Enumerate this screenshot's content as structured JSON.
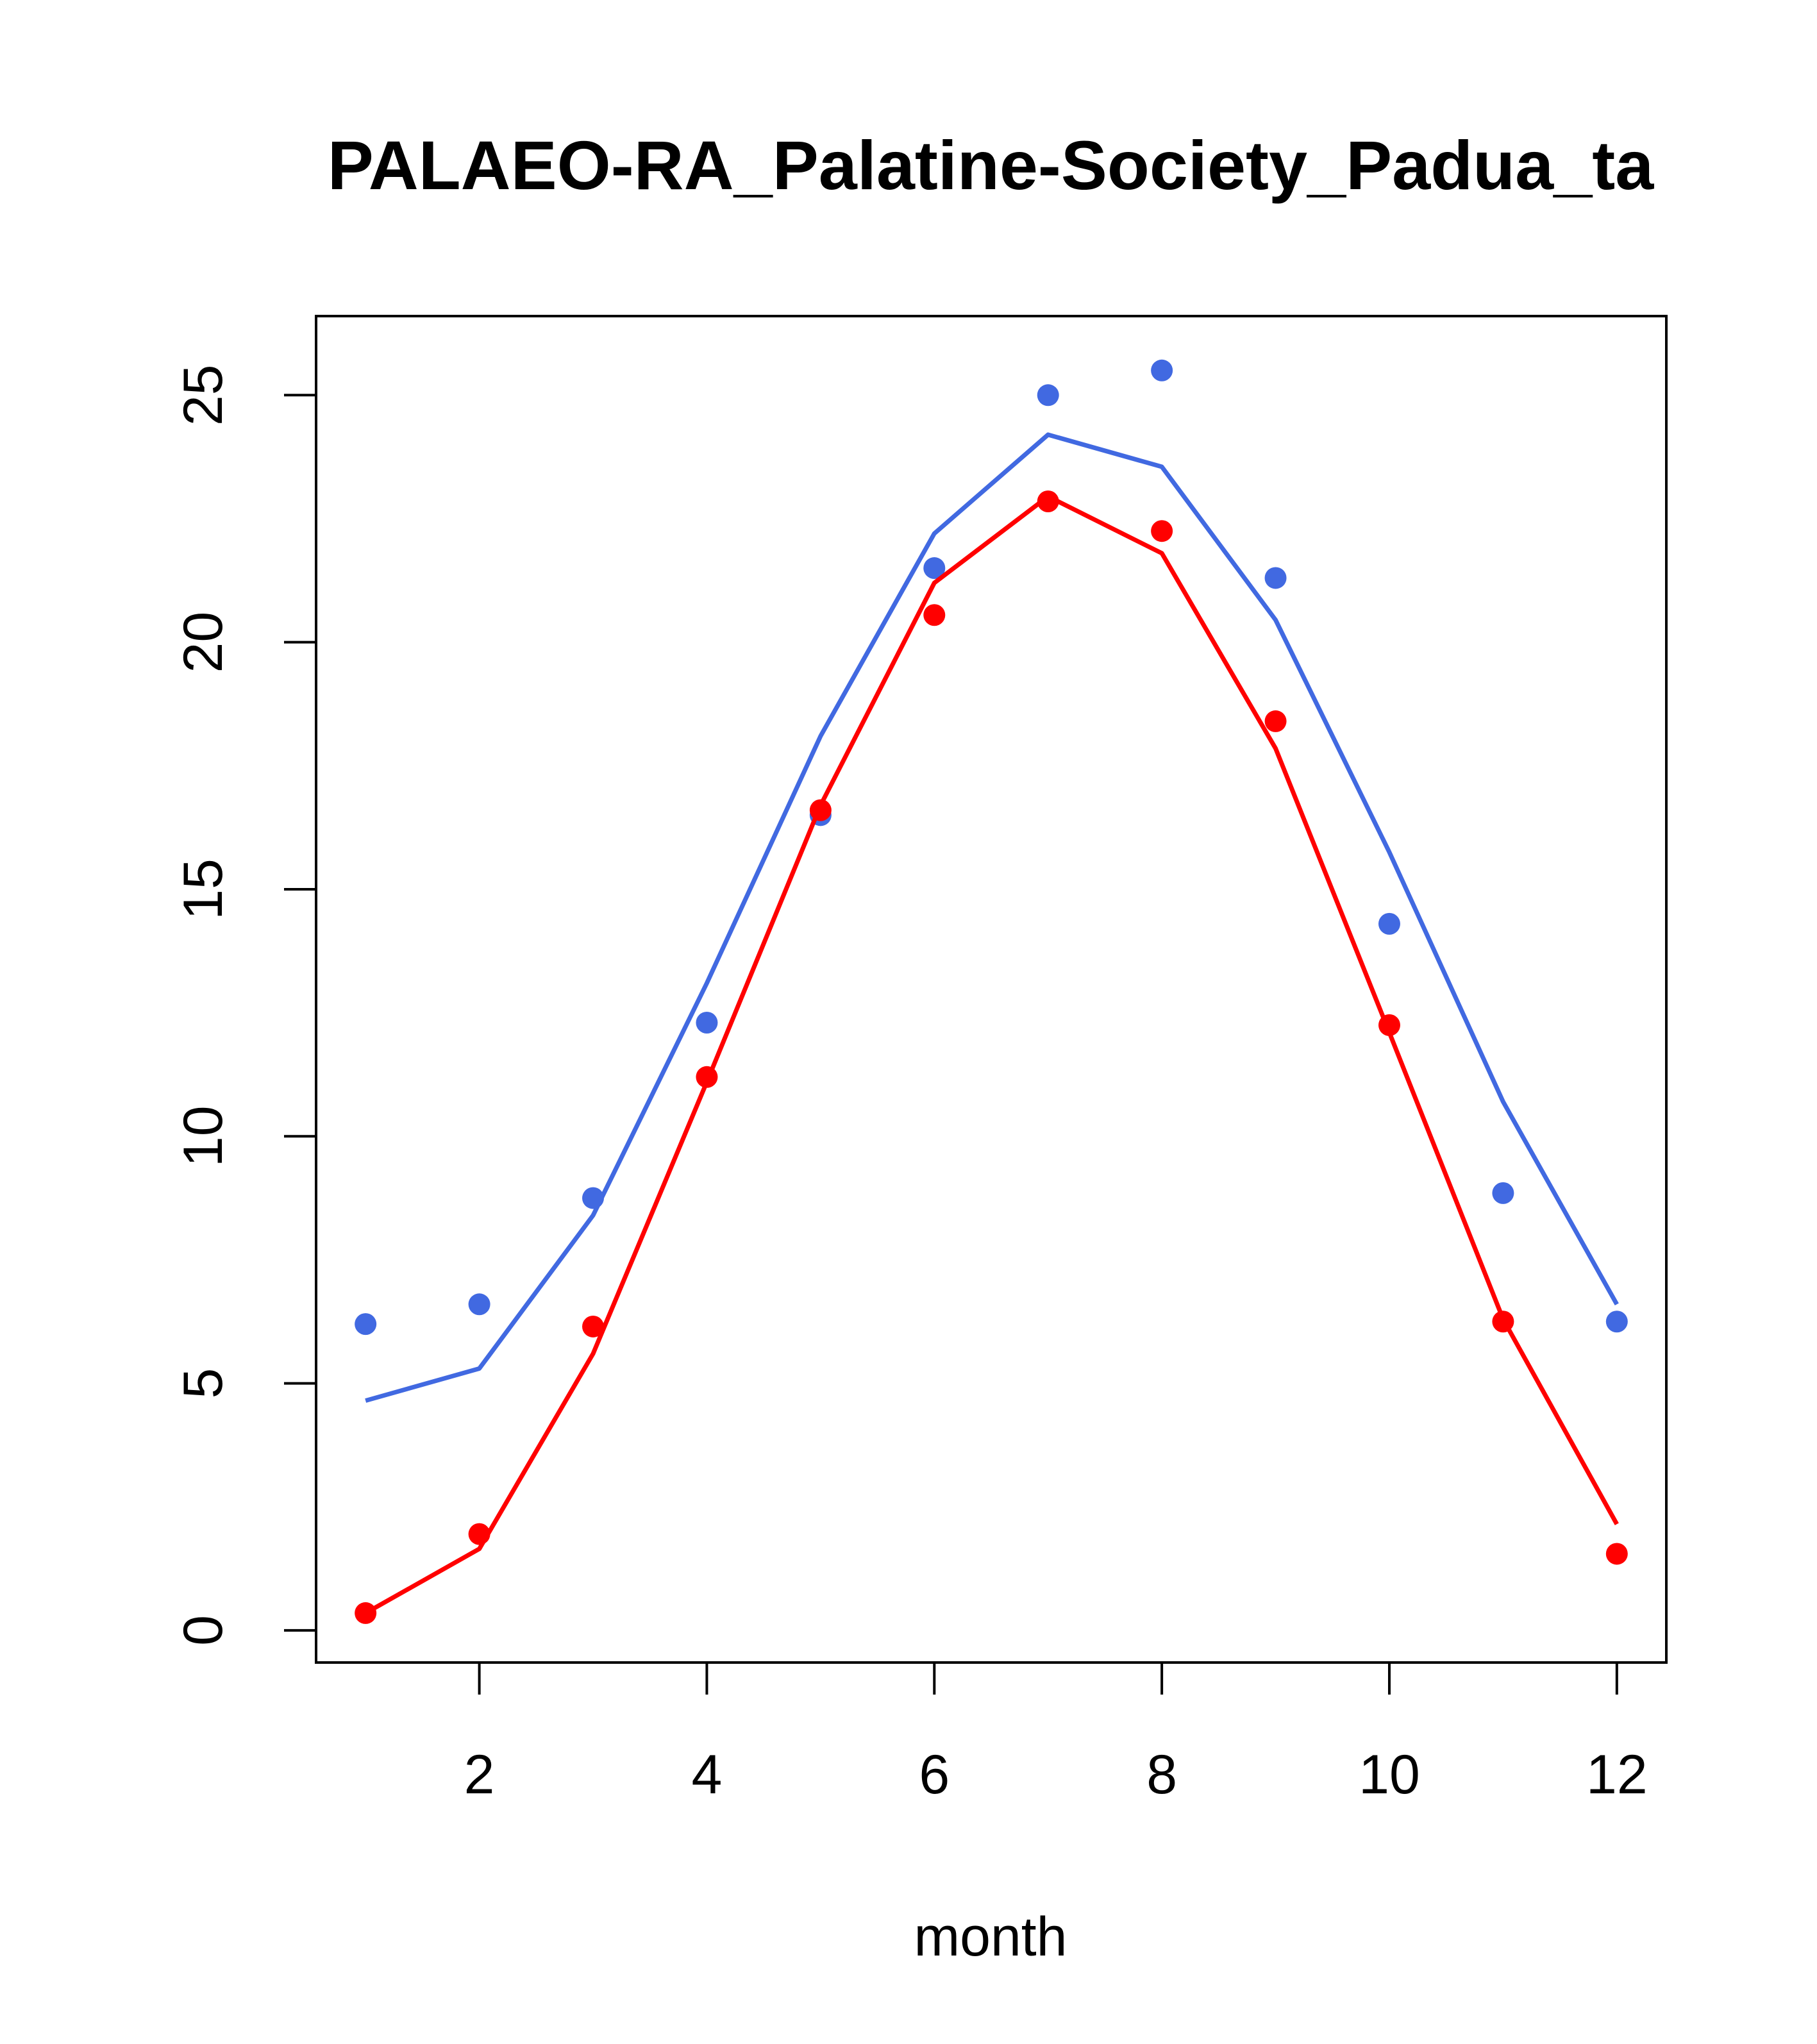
{
  "chart_data": {
    "type": "line",
    "title": "PALAEO-RA_Palatine-Society_Padua_ta",
    "xlabel": "month",
    "ylabel": "",
    "xlim": [
      0.565,
      12.435
    ],
    "ylim": [
      -0.65,
      26.6
    ],
    "xticks": [
      2,
      4,
      6,
      8,
      10,
      12
    ],
    "yticks": [
      0,
      5,
      10,
      15,
      20,
      25
    ],
    "grid": false,
    "legend": "none",
    "x": [
      1,
      2,
      3,
      4,
      5,
      6,
      7,
      8,
      9,
      10,
      11,
      12
    ],
    "series": [
      {
        "color": "#4169E1",
        "points": [
          6.2,
          6.6,
          8.75,
          12.3,
          16.5,
          21.5,
          25.0,
          25.5,
          21.3,
          14.3,
          8.85,
          6.25
        ],
        "line": [
          4.65,
          5.3,
          8.4,
          13.1,
          18.1,
          22.2,
          24.2,
          23.55,
          20.45,
          15.75,
          10.7,
          6.6
        ]
      },
      {
        "color": "#FF0000",
        "points": [
          0.35,
          1.95,
          6.15,
          11.2,
          16.6,
          20.55,
          22.85,
          22.25,
          18.4,
          12.25,
          6.25,
          1.55
        ],
        "line": [
          0.35,
          1.65,
          5.6,
          11.1,
          16.7,
          21.2,
          22.95,
          21.8,
          17.85,
          12.1,
          6.3,
          2.15
        ]
      }
    ]
  }
}
